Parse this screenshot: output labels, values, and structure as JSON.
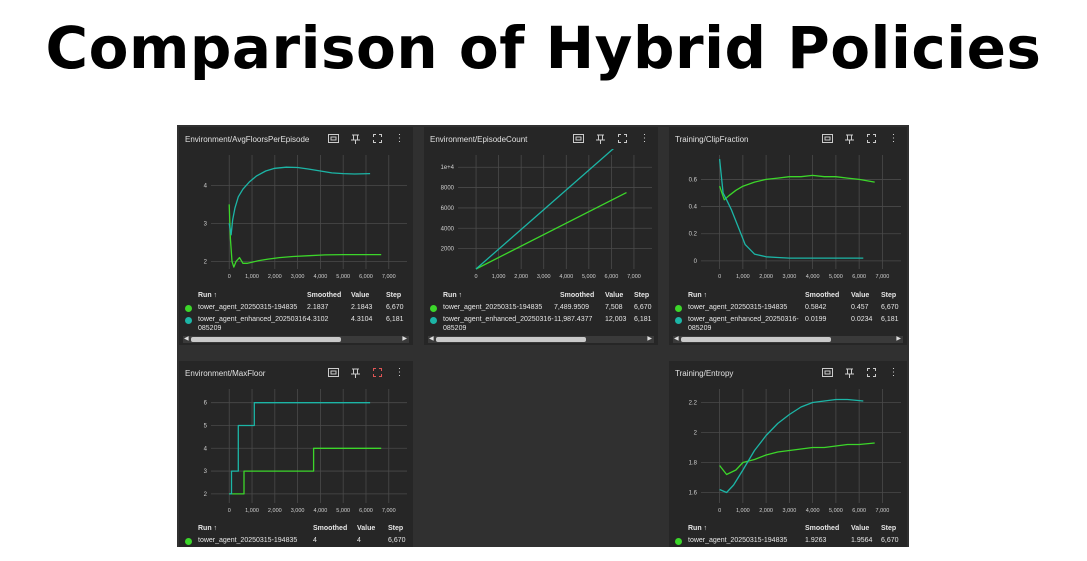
{
  "page_title": "Comparison of Hybrid Policies",
  "colors": {
    "green": "#3cd62a",
    "teal": "#1cb5a6",
    "panel_bg": "#262626",
    "dash_bg": "#303030"
  },
  "icons": [
    "fit-domain-icon",
    "pin-icon",
    "fullscreen-icon",
    "more-menu-icon"
  ],
  "table_headers": {
    "run": "Run ↑",
    "smoothed": "Smoothed",
    "value": "Value",
    "step": "Step"
  },
  "panels": {
    "avg_floors": {
      "title": "Environment/AvgFloorsPerEpisode",
      "rows": [
        {
          "run": "tower_agent_20250315-194835",
          "smoothed": "2.1837",
          "value": "2.1843",
          "step": "6,670"
        },
        {
          "run": "tower_agent_enhanced_20250316-",
          "run2": "085209",
          "smoothed": "4.3102",
          "value": "4.3104",
          "step": "6,181"
        }
      ]
    },
    "episode_count": {
      "title": "Environment/EpisodeCount",
      "rows": [
        {
          "run": "tower_agent_20250315-194835",
          "smoothed": "7,489.9509",
          "value": "7,508",
          "step": "6,670"
        },
        {
          "run": "tower_agent_enhanced_20250316-",
          "run2": "085209",
          "smoothed": "11,987.4377",
          "value": "12,003",
          "step": "6,181"
        }
      ]
    },
    "clip_fraction": {
      "title": "Training/ClipFraction",
      "rows": [
        {
          "run": "tower_agent_20250315-194835",
          "smoothed": "0.5842",
          "value": "0.457",
          "step": "6,670"
        },
        {
          "run": "tower_agent_enhanced_20250316-",
          "run2": "085209",
          "smoothed": "0.0199",
          "value": "0.0234",
          "step": "6,181"
        }
      ]
    },
    "max_floor": {
      "title": "Environment/MaxFloor",
      "rows": [
        {
          "run": "tower_agent_20250315-194835",
          "smoothed": "4",
          "value": "4",
          "step": "6,670"
        }
      ]
    },
    "entropy": {
      "title": "Training/Entropy",
      "rows": [
        {
          "run": "tower_agent_20250315-194835",
          "smoothed": "1.9263",
          "value": "1.9564",
          "step": "6,670"
        }
      ]
    }
  },
  "chart_data": [
    {
      "type": "line",
      "title": "Environment/AvgFloorsPerEpisode",
      "x_ticks": [
        "0",
        "1,000",
        "2,000",
        "3,000",
        "4,000",
        "5,000",
        "6,000",
        "7,000"
      ],
      "y_ticks": [
        "2",
        "3",
        "4"
      ],
      "xlim": [
        -800,
        7800
      ],
      "ylim": [
        1.8,
        4.8
      ],
      "series": [
        {
          "name": "tower_agent_20250315-194835",
          "color": "#3cd62a",
          "x": [
            0,
            50,
            120,
            200,
            300,
            450,
            600,
            800,
            1000,
            1300,
            1700,
            2200,
            2800,
            3500,
            4200,
            5000,
            5800,
            6670
          ],
          "y": [
            3.5,
            2.6,
            2.0,
            1.85,
            2.0,
            2.1,
            1.95,
            1.95,
            1.98,
            2.02,
            2.06,
            2.1,
            2.13,
            2.15,
            2.17,
            2.18,
            2.18,
            2.18
          ]
        },
        {
          "name": "tower_agent_enhanced_20250316-085209",
          "color": "#1cb5a6",
          "x": [
            0,
            80,
            150,
            250,
            400,
            600,
            900,
            1200,
            1600,
            2000,
            2500,
            3000,
            3500,
            4000,
            4500,
            5000,
            5500,
            6181
          ],
          "y": [
            3.0,
            2.7,
            3.1,
            3.4,
            3.7,
            3.9,
            4.1,
            4.25,
            4.38,
            4.45,
            4.48,
            4.47,
            4.43,
            4.38,
            4.33,
            4.31,
            4.3,
            4.31
          ]
        }
      ]
    },
    {
      "type": "line",
      "title": "Environment/EpisodeCount",
      "x_ticks": [
        "0",
        "1,000",
        "2,000",
        "3,000",
        "4,000",
        "5,000",
        "6,000",
        "7,000"
      ],
      "y_ticks": [
        "2000",
        "4000",
        "6000",
        "8000",
        "1e+4"
      ],
      "xlim": [
        -800,
        7800
      ],
      "ylim": [
        0,
        11200
      ],
      "series": [
        {
          "name": "tower_agent_20250315-194835",
          "color": "#3cd62a",
          "x": [
            0,
            6670
          ],
          "y": [
            0,
            7508
          ]
        },
        {
          "name": "tower_agent_enhanced_20250316-085209",
          "color": "#1cb5a6",
          "x": [
            0,
            6181
          ],
          "y": [
            0,
            12003
          ]
        }
      ]
    },
    {
      "type": "line",
      "title": "Training/ClipFraction",
      "x_ticks": [
        "0",
        "1,000",
        "2,000",
        "3,000",
        "4,000",
        "5,000",
        "6,000",
        "7,000"
      ],
      "y_ticks": [
        "0",
        "0.2",
        "0.4",
        "0.6"
      ],
      "xlim": [
        -800,
        7800
      ],
      "ylim": [
        -0.06,
        0.78
      ],
      "series": [
        {
          "name": "tower_agent_20250315-194835",
          "color": "#3cd62a",
          "x": [
            0,
            200,
            400,
            700,
            1000,
            1500,
            2000,
            2500,
            3000,
            3500,
            4000,
            4500,
            5000,
            5500,
            6000,
            6670
          ],
          "y": [
            0.55,
            0.45,
            0.48,
            0.52,
            0.55,
            0.58,
            0.6,
            0.61,
            0.62,
            0.62,
            0.63,
            0.62,
            0.62,
            0.61,
            0.6,
            0.58
          ]
        },
        {
          "name": "tower_agent_enhanced_20250316-085209",
          "color": "#1cb5a6",
          "x": [
            0,
            150,
            300,
            500,
            800,
            1100,
            1500,
            2000,
            2500,
            3000,
            4000,
            5000,
            6181
          ],
          "y": [
            0.75,
            0.5,
            0.45,
            0.38,
            0.25,
            0.12,
            0.05,
            0.03,
            0.025,
            0.02,
            0.02,
            0.02,
            0.02
          ]
        }
      ]
    },
    {
      "type": "line",
      "title": "Environment/MaxFloor",
      "x_ticks": [
        "0",
        "1,000",
        "2,000",
        "3,000",
        "4,000",
        "5,000",
        "6,000",
        "7,000"
      ],
      "y_ticks": [
        "2",
        "3",
        "4",
        "5",
        "6"
      ],
      "xlim": [
        -800,
        7800
      ],
      "ylim": [
        1.6,
        6.6
      ],
      "series": [
        {
          "name": "tower_agent_20250315-194835",
          "color": "#3cd62a",
          "x": [
            0,
            650,
            650,
            3700,
            3700,
            6670
          ],
          "y": [
            2,
            2,
            3,
            3,
            4,
            4
          ]
        },
        {
          "name": "tower_agent_enhanced_20250316-085209",
          "color": "#1cb5a6",
          "x": [
            0,
            100,
            100,
            400,
            400,
            1100,
            1100,
            6181
          ],
          "y": [
            2,
            2,
            3,
            3,
            5,
            5,
            6,
            6
          ]
        }
      ]
    },
    {
      "type": "line",
      "title": "Training/Entropy",
      "x_ticks": [
        "0",
        "1,000",
        "2,000",
        "3,000",
        "4,000",
        "5,000",
        "6,000",
        "7,000"
      ],
      "y_ticks": [
        "1.6",
        "1.8",
        "2",
        "2.2"
      ],
      "xlim": [
        -800,
        7800
      ],
      "ylim": [
        1.53,
        2.29
      ],
      "series": [
        {
          "name": "tower_agent_20250315-194835",
          "color": "#3cd62a",
          "x": [
            0,
            300,
            700,
            1000,
            1500,
            2000,
            2500,
            3000,
            3500,
            4000,
            4500,
            5000,
            5500,
            6000,
            6670
          ],
          "y": [
            1.78,
            1.72,
            1.75,
            1.8,
            1.82,
            1.85,
            1.87,
            1.88,
            1.89,
            1.9,
            1.9,
            1.91,
            1.92,
            1.92,
            1.93
          ]
        },
        {
          "name": "tower_agent_enhanced_20250316-085209",
          "color": "#1cb5a6",
          "x": [
            0,
            300,
            600,
            1000,
            1500,
            2000,
            2500,
            3000,
            3500,
            4000,
            4500,
            5000,
            5500,
            6181
          ],
          "y": [
            1.62,
            1.6,
            1.65,
            1.75,
            1.88,
            1.98,
            2.06,
            2.12,
            2.17,
            2.2,
            2.21,
            2.22,
            2.22,
            2.21
          ]
        }
      ]
    }
  ]
}
